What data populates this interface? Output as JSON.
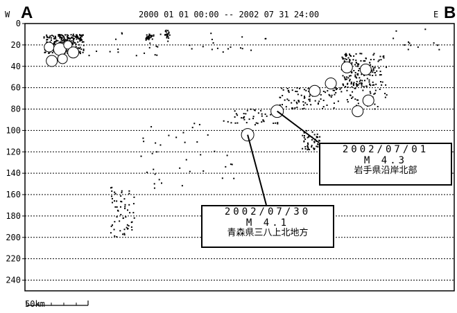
{
  "header": {
    "west_label": "W",
    "section_start": "A",
    "period": "2000 01 01 00:00 -- 2002 07 31 24:00",
    "east_label": "E",
    "section_end": "B"
  },
  "chart_data": {
    "type": "scatter",
    "title": "2000 01 01 00:00 -- 2002 07 31 24:00",
    "xlabel": "",
    "ylabel": "",
    "ylim": [
      0,
      250
    ],
    "y_ticks": [
      "0",
      "20",
      "40",
      "60",
      "80",
      "100",
      "120",
      "140",
      "160",
      "180",
      "200",
      "220",
      "240"
    ],
    "grid": true,
    "grid_style": "dotted horizontal",
    "scale_bar": "50km",
    "clusters": [
      {
        "x": [
          7,
          22
        ],
        "y": [
          10,
          28
        ],
        "n": 260
      },
      {
        "x": [
          45,
          48
        ],
        "y": [
          10,
          16
        ],
        "n": 30
      },
      {
        "x": [
          52,
          54
        ],
        "y": [
          6,
          14
        ],
        "n": 18
      },
      {
        "x": [
          22,
          90
        ],
        "y": [
          8,
          30
        ],
        "n": 35
      },
      {
        "x": [
          78,
          95
        ],
        "y": [
          80,
          95
        ],
        "n": 40
      },
      {
        "x": [
          103,
          110
        ],
        "y": [
          100,
          118
        ],
        "n": 50
      },
      {
        "x": [
          95,
          118
        ],
        "y": [
          60,
          80
        ],
        "n": 90
      },
      {
        "x": [
          118,
          130
        ],
        "y": [
          28,
          60
        ],
        "n": 120
      },
      {
        "x": [
          120,
          135
        ],
        "y": [
          28,
          80
        ],
        "n": 100
      },
      {
        "x": [
          32,
          41
        ],
        "y": [
          152,
          200
        ],
        "n": 60
      },
      {
        "x": [
          42,
          80
        ],
        "y": [
          90,
          155
        ],
        "n": 40
      },
      {
        "x": [
          136,
          155
        ],
        "y": [
          0,
          25
        ],
        "n": 12
      }
    ],
    "circles": [
      {
        "x": 9,
        "y": 22,
        "r": 7
      },
      {
        "x": 13,
        "y": 24,
        "r": 9
      },
      {
        "x": 16,
        "y": 20,
        "r": 6
      },
      {
        "x": 18,
        "y": 27,
        "r": 8
      },
      {
        "x": 10,
        "y": 35,
        "r": 8
      },
      {
        "x": 14,
        "y": 33,
        "r": 7
      },
      {
        "x": 83,
        "y": 104,
        "r": 9
      },
      {
        "x": 94,
        "y": 82,
        "r": 9
      },
      {
        "x": 108,
        "y": 63,
        "r": 8
      },
      {
        "x": 114,
        "y": 56,
        "r": 8
      },
      {
        "x": 120,
        "y": 41,
        "r": 8
      },
      {
        "x": 127,
        "y": 43,
        "r": 8
      },
      {
        "x": 128,
        "y": 72,
        "r": 8
      },
      {
        "x": 124,
        "y": 82,
        "r": 8
      }
    ],
    "callouts": [
      {
        "id": "callout-2002-07-01",
        "date": "2002/07/01",
        "magnitude": "M 4.3",
        "place": "岩手県沿岸北部",
        "target": {
          "x": 94,
          "y": 82
        }
      },
      {
        "id": "callout-2002-07-30",
        "date": "2002/07/30",
        "magnitude": "M 4.1",
        "place": "青森県三八上北地方",
        "target": {
          "x": 83,
          "y": 104
        }
      }
    ]
  },
  "annotations": [
    {
      "date": "2002/07/01",
      "magnitude": "M 4.3",
      "place": "岩手県沿岸北部"
    },
    {
      "date": "2002/07/30",
      "magnitude": "M 4.1",
      "place": "青森県三八上北地方"
    }
  ],
  "scale_bar": {
    "label": "50km"
  }
}
